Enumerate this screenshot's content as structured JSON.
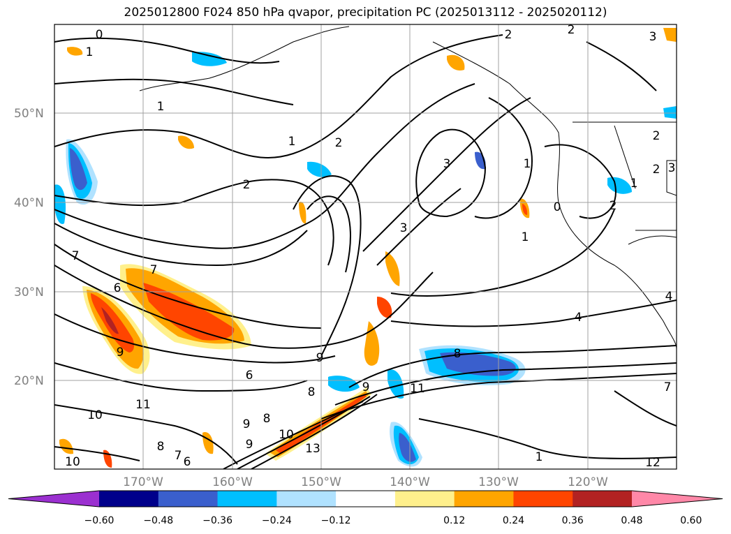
{
  "title": "2025012800 F024 850 hPa qvapor, precipitation PC (2025013112 - 2025020112)",
  "map": {
    "lat_labels": [
      "50°N",
      "40°N",
      "30°N",
      "20°N"
    ],
    "lon_labels": [
      "170°W",
      "160°W",
      "150°W",
      "140°W",
      "130°W",
      "120°W"
    ],
    "grid": true
  },
  "colorbar": {
    "extend": "both",
    "colors": [
      "#9b30d0",
      "#00008b",
      "#3a5fcd",
      "#00bfff",
      "#b0e2ff",
      "#ffffff",
      "#fff08c",
      "#ffa500",
      "#ff4500",
      "#b22222",
      "#ff88a8"
    ],
    "tick_labels": [
      "−0.60",
      "−0.48",
      "−0.36",
      "−0.24",
      "−0.12",
      "0.12",
      "0.24",
      "0.36",
      "0.48",
      "0.60"
    ]
  },
  "contour_labels": [
    "0",
    "1",
    "1",
    "1",
    "2",
    "2",
    "2",
    "3",
    "1",
    "2",
    "3",
    "0",
    "2",
    "1",
    "2",
    "1",
    "2",
    "3",
    "3",
    "7",
    "7",
    "6",
    "9",
    "6",
    "9",
    "8",
    "8",
    "8",
    "9",
    "9",
    "11",
    "11",
    "10",
    "10",
    "8",
    "7",
    "6",
    "9",
    "13",
    "10",
    "4",
    "4",
    "1",
    "12",
    "7"
  ]
}
